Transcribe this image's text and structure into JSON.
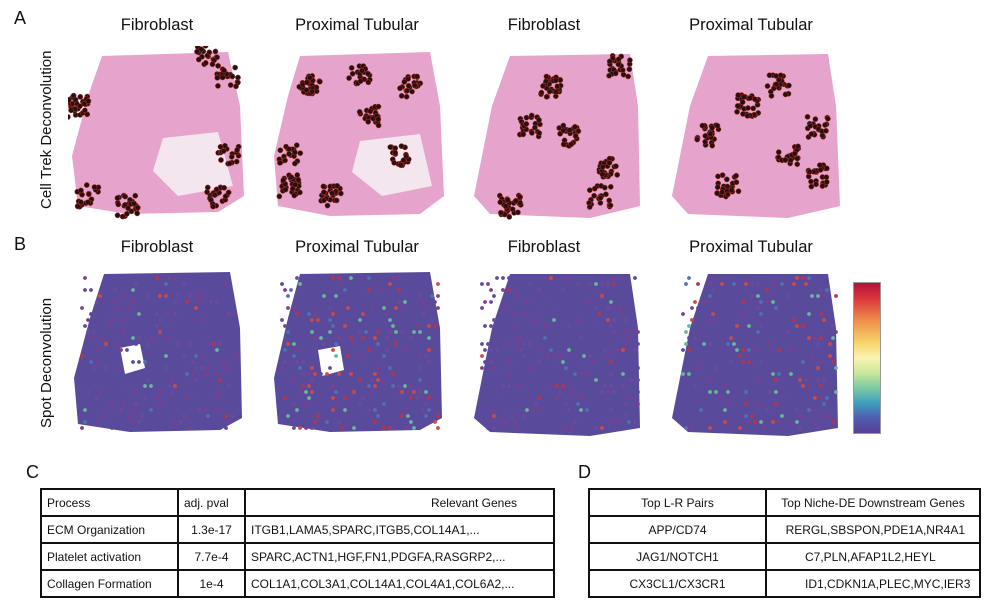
{
  "panel_labels": {
    "a": "A",
    "b": "B",
    "c": "C",
    "d": "D"
  },
  "row_labels": {
    "a": "Cell Trek Deconvolution",
    "b": "Spot Deconvolution"
  },
  "row_a_titles": [
    "Fibroblast",
    "Proximal Tubular",
    "Fibroblast",
    "Proximal Tubular"
  ],
  "row_b_titles": [
    "Fibroblast",
    "Proximal Tubular",
    "Fibroblast",
    "Proximal Tubular"
  ],
  "colors": {
    "tissue": "#e6a3cc",
    "dot": "#2a0f10",
    "dot_edge": "#b8332a",
    "spot_bg": "#5a4a9c"
  },
  "table_c": {
    "headers": [
      "Process",
      "adj. pval",
      "Relevant Genes"
    ],
    "rows": [
      [
        "ECM Organization",
        "1.3e-17",
        "ITGB1,LAMA5,SPARC,ITGB5,COL14A1,..."
      ],
      [
        "Platelet activation",
        "7.7e-4",
        "SPARC,ACTN1,HGF,FN1,PDGFA,RASGRP2,..."
      ],
      [
        "Collagen Formation",
        "1e-4",
        "COL1A1,COL3A1,COL14A1,COL4A1,COL6A2,..."
      ]
    ]
  },
  "table_d": {
    "headers": [
      "Top L-R Pairs",
      "Top Niche-DE Downstream Genes"
    ],
    "rows": [
      [
        "APP/CD74",
        "RERGL,SBSPON,PDE1A,NR4A1"
      ],
      [
        "JAG1/NOTCH1",
        "C7,PLN,AFAP1L2,HEYL"
      ],
      [
        "CX3CL1/CX3CR1",
        "ID1,CDKN1A,PLEC,MYC,IER3"
      ]
    ]
  }
}
